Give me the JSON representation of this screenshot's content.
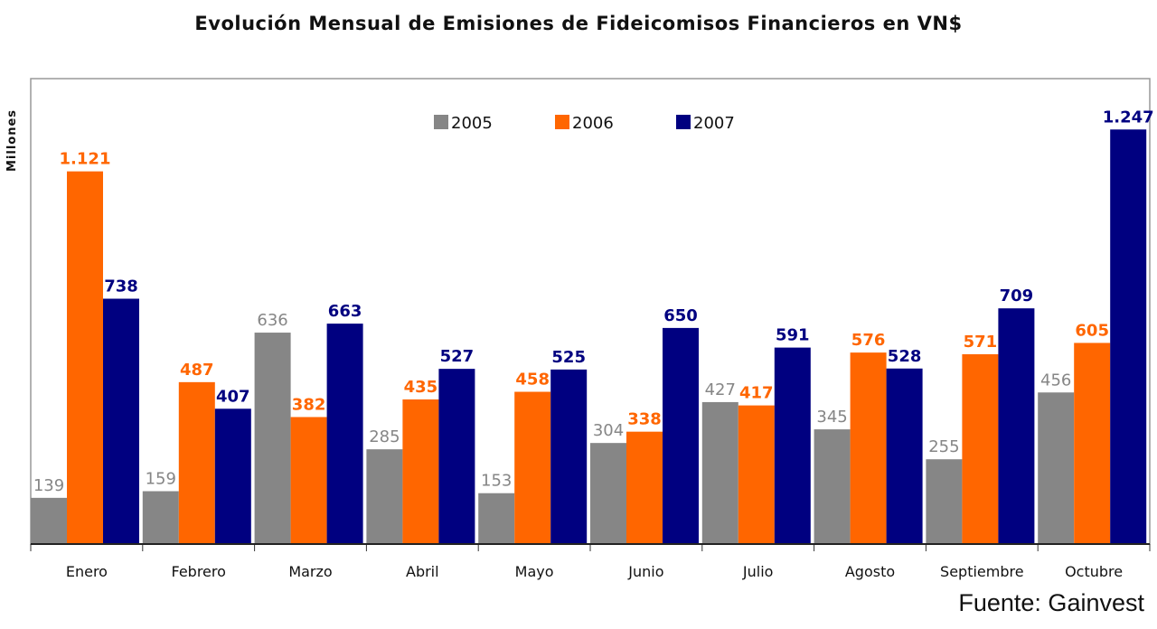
{
  "chart_data": {
    "type": "bar",
    "title": "Evolución Mensual de Emisiones de Fideicomisos Financieros en VN$",
    "xlabel": "",
    "ylabel": "Millones",
    "ylim": [
      0,
      1400
    ],
    "grid": false,
    "legend_position": "top-center",
    "categories": [
      "Enero",
      "Febrero",
      "Marzo",
      "Abril",
      "Mayo",
      "Junio",
      "Julio",
      "Agosto",
      "Septiembre",
      "Octubre"
    ],
    "series": [
      {
        "name": "2005",
        "color": "#868686",
        "values": [
          139,
          159,
          636,
          285,
          153,
          304,
          427,
          345,
          255,
          456
        ],
        "labels": [
          "139",
          "159",
          "636",
          "285",
          "153",
          "304",
          "427",
          "345",
          "255",
          "456"
        ]
      },
      {
        "name": "2006",
        "color": "#FF6600",
        "values": [
          1121,
          487,
          382,
          435,
          458,
          338,
          417,
          576,
          571,
          605
        ],
        "labels": [
          "1.121",
          "487",
          "382",
          "435",
          "458",
          "338",
          "417",
          "576",
          "571",
          "605"
        ]
      },
      {
        "name": "2007",
        "color": "#000080",
        "values": [
          738,
          407,
          663,
          527,
          525,
          650,
          591,
          528,
          709,
          1247
        ],
        "labels": [
          "738",
          "407",
          "663",
          "527",
          "525",
          "650",
          "591",
          "528",
          "709",
          "1.247"
        ]
      }
    ],
    "source": "Fuente: Gainvest"
  }
}
